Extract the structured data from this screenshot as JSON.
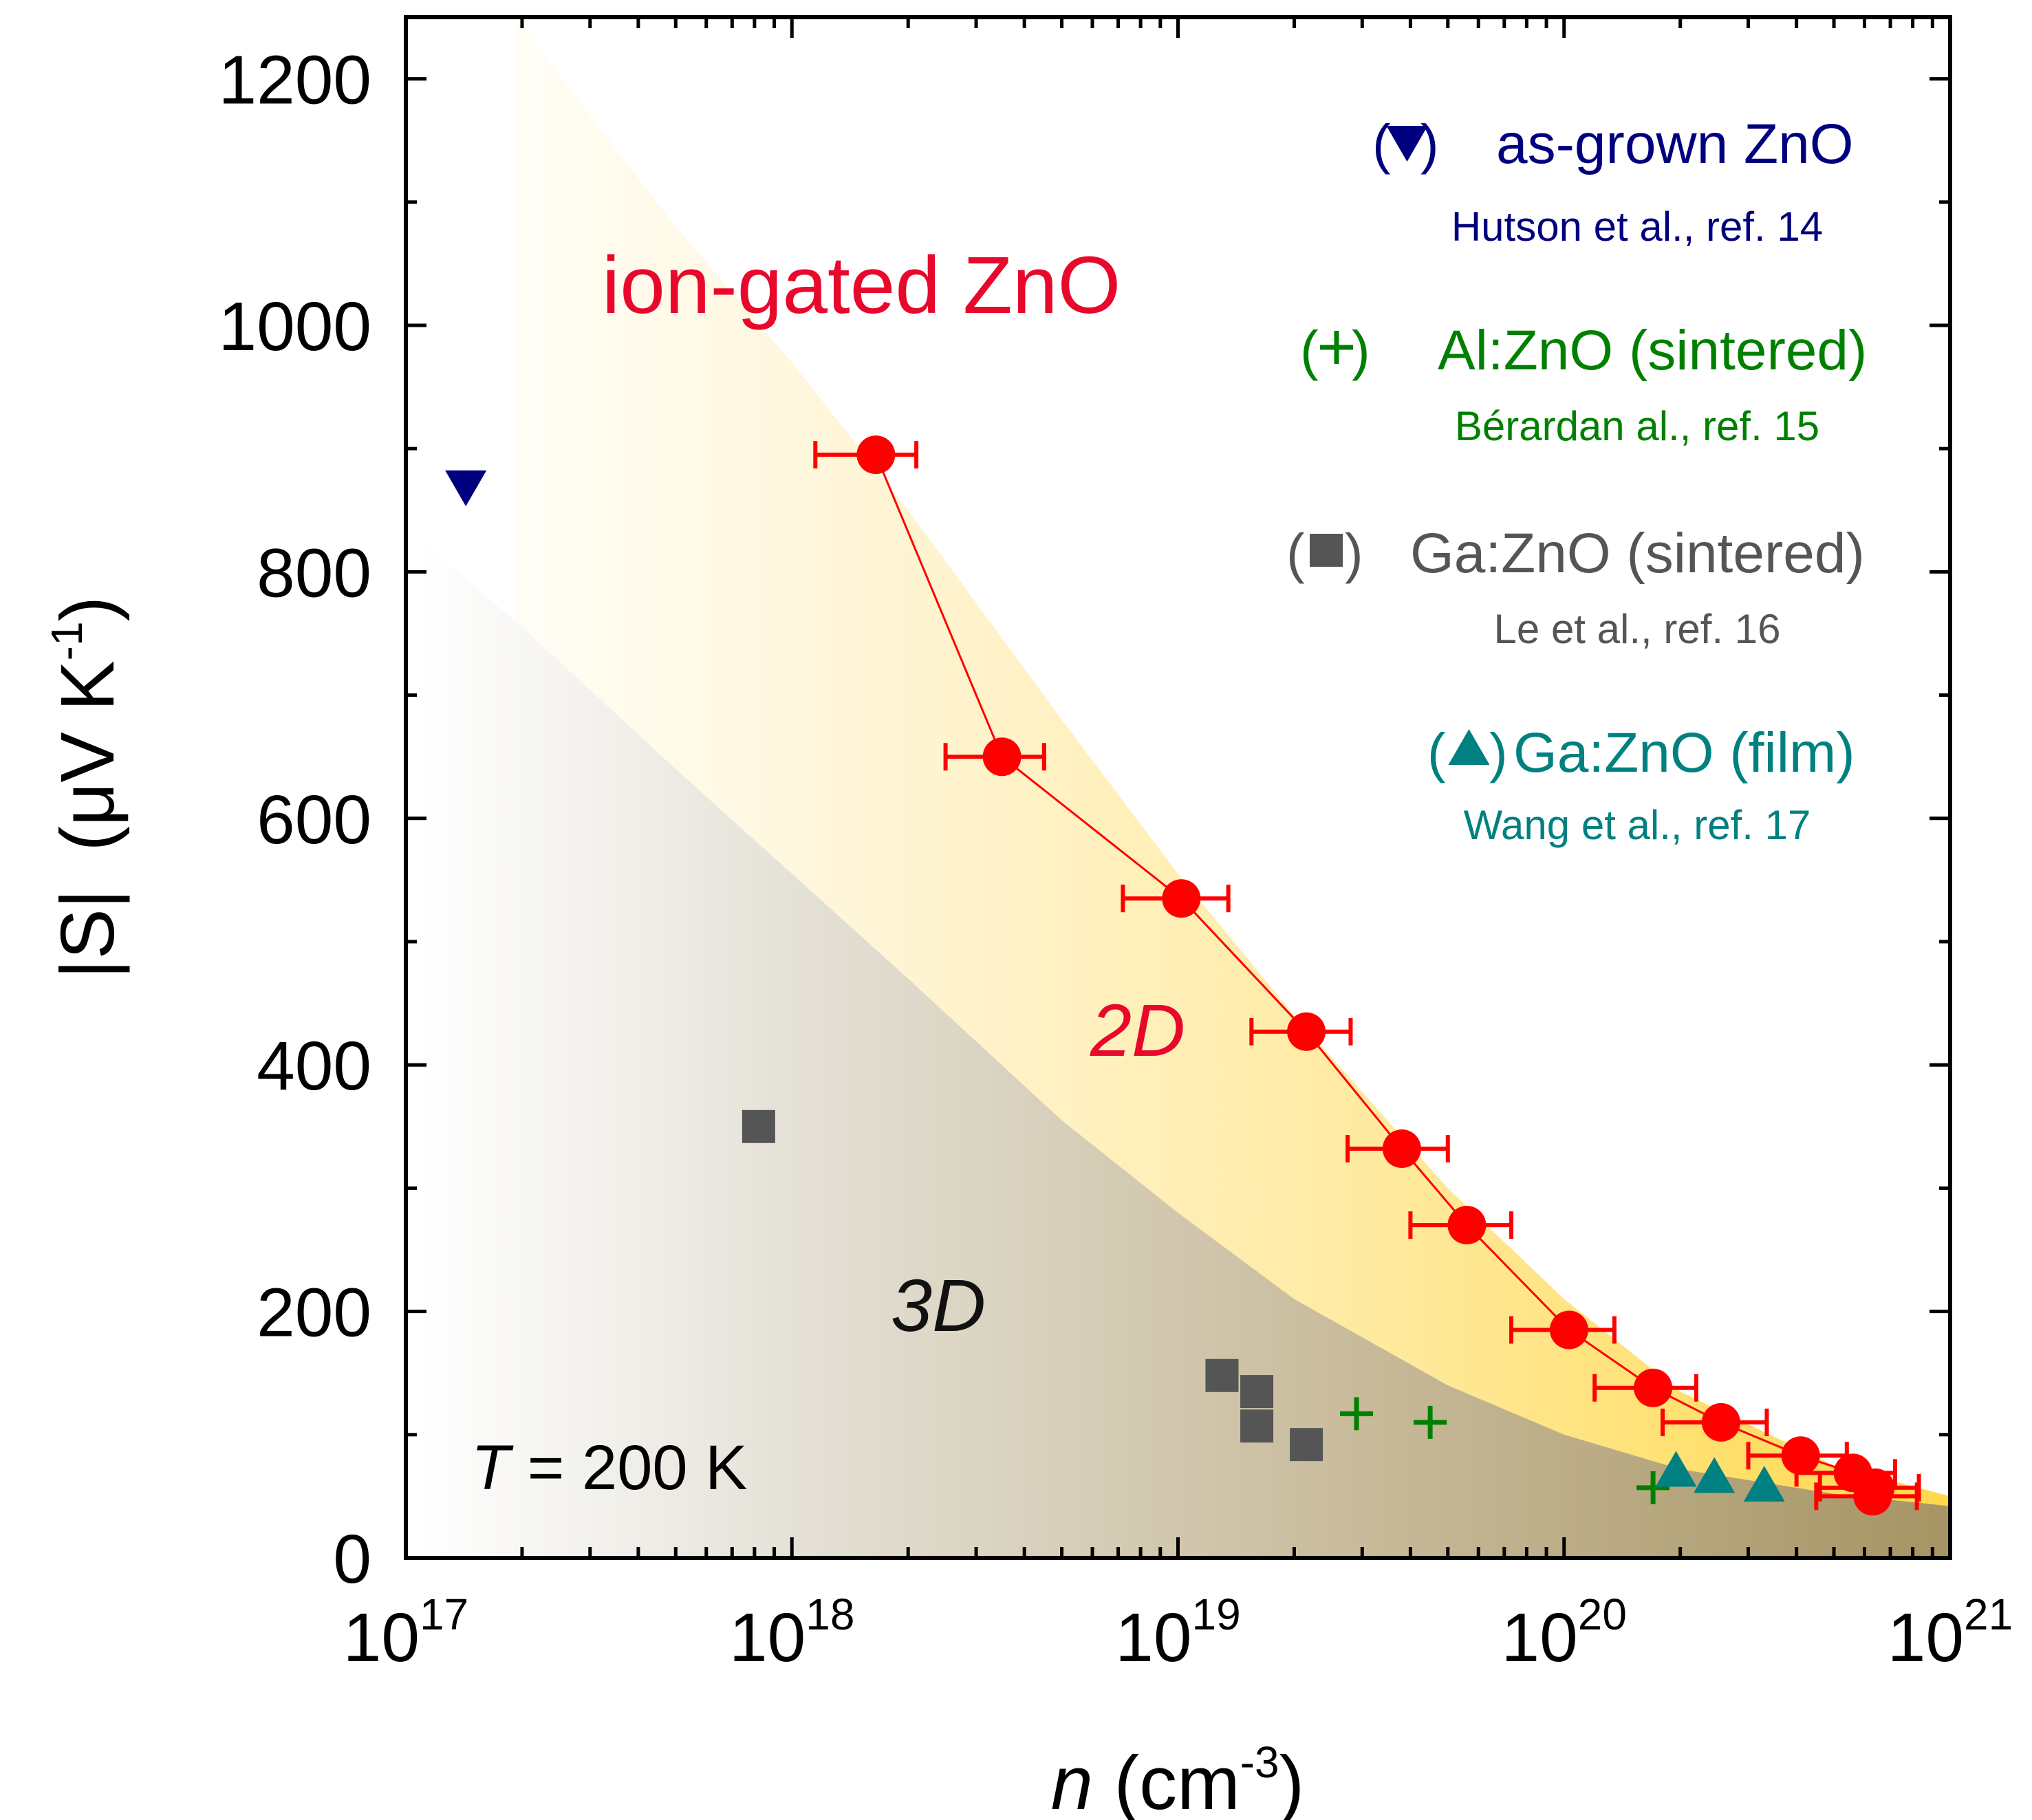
{
  "chart_data": {
    "type": "scatter",
    "x_label_parts": {
      "var": "n",
      "unit": " (cm",
      "exp": "-3",
      "close": ")"
    },
    "y_label_parts": {
      "abs": "|S|",
      "unit": "(μV K",
      "exp": "-1",
      "close": ")"
    },
    "x_scale": "log",
    "xlim": [
      1e+17,
      1e+21
    ],
    "ylim": [
      0,
      1250
    ],
    "x_ticks": [
      {
        "value": 1e+17,
        "base": "10",
        "exp": "17"
      },
      {
        "value": 1e+18,
        "base": "10",
        "exp": "18"
      },
      {
        "value": 1e+19,
        "base": "10",
        "exp": "19"
      },
      {
        "value": 1e+20,
        "base": "10",
        "exp": "20"
      },
      {
        "value": 1e+21,
        "base": "10",
        "exp": "21"
      }
    ],
    "y_ticks": [
      {
        "value": 0,
        "label": "0"
      },
      {
        "value": 200,
        "label": "200"
      },
      {
        "value": 400,
        "label": "400"
      },
      {
        "value": 600,
        "label": "600"
      },
      {
        "value": 800,
        "label": "800"
      },
      {
        "value": 1000,
        "label": "1000"
      },
      {
        "value": 1200,
        "label": "1200"
      }
    ],
    "series": [
      {
        "key": "ion_gated",
        "name": "ion-gated ZnO",
        "marker": "circle",
        "color": "#ff0000",
        "connected": true,
        "points": [
          {
            "x": 1.65e+18,
            "y": 895,
            "xerr": [
              1.15e+18,
              2.1e+18
            ]
          },
          {
            "x": 3.5e+18,
            "y": 650,
            "xerr": [
              2.5e+18,
              4.5e+18
            ]
          },
          {
            "x": 1.02e+19,
            "y": 535,
            "xerr": [
              7.2e+18,
              1.35e+19
            ]
          },
          {
            "x": 2.15e+19,
            "y": 427,
            "xerr": [
              1.55e+19,
              2.8e+19
            ]
          },
          {
            "x": 3.8e+19,
            "y": 332,
            "xerr": [
              2.75e+19,
              5e+19
            ]
          },
          {
            "x": 5.6e+19,
            "y": 270,
            "xerr": [
              4e+19,
              7.3e+19
            ]
          },
          {
            "x": 1.03e+20,
            "y": 185,
            "xerr": [
              7.3e+19,
              1.35e+20
            ]
          },
          {
            "x": 1.7e+20,
            "y": 138,
            "xerr": [
              1.2e+20,
              2.2e+20
            ]
          },
          {
            "x": 2.55e+20,
            "y": 110,
            "xerr": [
              1.8e+20,
              3.35e+20
            ]
          },
          {
            "x": 4.1e+20,
            "y": 83,
            "xerr": [
              3e+20,
              5.4e+20
            ]
          },
          {
            "x": 5.6e+20,
            "y": 69,
            "xerr": [
              4e+20,
              7.2e+20
            ]
          },
          {
            "x": 6.4e+20,
            "y": 57,
            "xerr": [
              4.6e+20,
              8.3e+20
            ]
          },
          {
            "x": 6.3e+20,
            "y": 50,
            "xerr": [
              4.5e+20,
              8.2e+20
            ]
          }
        ]
      },
      {
        "key": "as_grown",
        "marker": "triangle-down",
        "color": "#00007f",
        "points": [
          {
            "x": 1.43e+17,
            "y": 870
          }
        ]
      },
      {
        "key": "al_zno",
        "marker": "plus",
        "color": "#008000",
        "points": [
          {
            "x": 2.9e+19,
            "y": 117
          },
          {
            "x": 4.5e+19,
            "y": 110
          },
          {
            "x": 1.7e+20,
            "y": 57
          }
        ]
      },
      {
        "key": "ga_zno_sintered",
        "marker": "square",
        "color": "#555555",
        "points": [
          {
            "x": 8.2e+17,
            "y": 350
          },
          {
            "x": 1.3e+19,
            "y": 148
          },
          {
            "x": 1.6e+19,
            "y": 135
          },
          {
            "x": 1.6e+19,
            "y": 107
          },
          {
            "x": 2.15e+19,
            "y": 92
          }
        ]
      },
      {
        "key": "ga_zno_film",
        "marker": "triangle-up",
        "color": "#008080",
        "points": [
          {
            "x": 1.95e+20,
            "y": 70
          },
          {
            "x": 2.45e+20,
            "y": 65
          },
          {
            "x": 3.3e+20,
            "y": 58
          }
        ]
      }
    ],
    "legend": {
      "placement": "top-right",
      "entries": [
        {
          "series": "as_grown",
          "open": "(",
          "close": ")",
          "label": "as-grown ZnO",
          "ref": "Hutson et al., ref. 14",
          "color": "#00007f"
        },
        {
          "series": "al_zno",
          "open": "(",
          "close": ")",
          "label": "Al:ZnO (sintered)",
          "ref": "Bérardan al., ref. 15",
          "color": "#008000"
        },
        {
          "series": "ga_zno_sintered",
          "open": "(",
          "close": ")",
          "label": "Ga:ZnO (sintered)",
          "ref": "Le et al., ref. 16",
          "color": "#555555"
        },
        {
          "series": "ga_zno_film",
          "open": "(",
          "close": ")",
          "label": "Ga:ZnO (film)",
          "ref": "Wang et al., ref. 17",
          "color": "#008080"
        }
      ]
    },
    "annotations": {
      "ion_gated_label": "ion-gated ZnO",
      "region_2d": "2D",
      "region_3d": "3D",
      "temp_var": "T",
      "temp_value": " = 200 K"
    },
    "regions": {
      "yellow_2d_upper_boundary": [
        {
          "x": 1.93e+17,
          "y": 1250
        },
        {
          "x": 3e+17,
          "y": 1170
        },
        {
          "x": 5e+17,
          "y": 1080
        },
        {
          "x": 1e+18,
          "y": 970
        },
        {
          "x": 2e+18,
          "y": 850
        },
        {
          "x": 5e+18,
          "y": 680
        },
        {
          "x": 1e+19,
          "y": 555
        },
        {
          "x": 2e+19,
          "y": 440
        },
        {
          "x": 5e+19,
          "y": 300
        },
        {
          "x": 1e+20,
          "y": 210
        },
        {
          "x": 2e+20,
          "y": 135
        },
        {
          "x": 5e+20,
          "y": 75
        },
        {
          "x": 1e+21,
          "y": 50
        }
      ],
      "gray_3d_upper_boundary": [
        {
          "x": 1.1e+17,
          "y": 825
        },
        {
          "x": 2e+17,
          "y": 755
        },
        {
          "x": 5e+17,
          "y": 640
        },
        {
          "x": 1e+18,
          "y": 555
        },
        {
          "x": 2e+18,
          "y": 470
        },
        {
          "x": 5e+18,
          "y": 355
        },
        {
          "x": 1e+19,
          "y": 280
        },
        {
          "x": 2e+19,
          "y": 210
        },
        {
          "x": 5e+19,
          "y": 140
        },
        {
          "x": 1e+20,
          "y": 100
        },
        {
          "x": 2e+20,
          "y": 72
        },
        {
          "x": 5e+20,
          "y": 52
        },
        {
          "x": 1e+21,
          "y": 42
        }
      ]
    }
  }
}
